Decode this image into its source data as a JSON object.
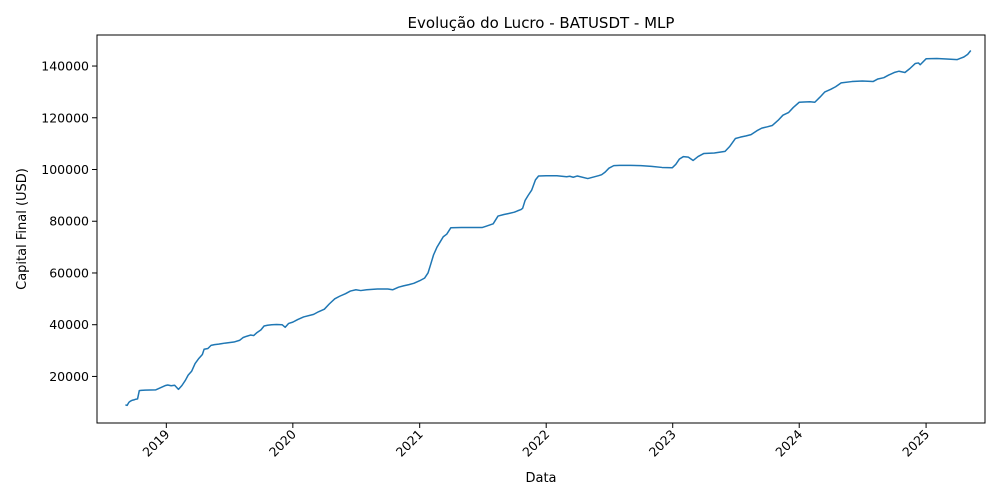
{
  "chart_data": {
    "type": "line",
    "title": "Evolução do Lucro - BATUSDT - MLP",
    "xlabel": "Data",
    "ylabel": "Capital Final (USD)",
    "x_range": [
      "2018-06-15",
      "2025-06-20"
    ],
    "ylim": [
      2000,
      152000
    ],
    "x_ticks": [
      "2019",
      "2020",
      "2021",
      "2022",
      "2023",
      "2024",
      "2025"
    ],
    "y_ticks": [
      "20000",
      "40000",
      "60000",
      "80000",
      "100000",
      "120000",
      "140000"
    ],
    "grid": false,
    "line_color": "#1f77b4",
    "series": [
      {
        "x": [
          "2018-09-05",
          "2018-09-10",
          "2018-09-15",
          "2018-09-20",
          "2018-09-25",
          "2018-10-01",
          "2018-10-05",
          "2018-10-10",
          "2018-10-15",
          "2018-10-20",
          "2018-11-01",
          "2018-12-01",
          "2018-12-30",
          "2019-01-05",
          "2019-01-15",
          "2019-01-25",
          "2019-02-05",
          "2019-02-15",
          "2019-02-25",
          "2019-03-05",
          "2019-03-15",
          "2019-03-25",
          "2019-04-05",
          "2019-04-15",
          "2019-04-20",
          "2019-05-01",
          "2019-05-10",
          "2019-05-20",
          "2019-06-01",
          "2019-06-10",
          "2019-06-20",
          "2019-07-15",
          "2019-08-01",
          "2019-08-10",
          "2019-08-20",
          "2019-09-01",
          "2019-09-10",
          "2019-09-20",
          "2019-10-01",
          "2019-10-10",
          "2019-10-20",
          "2019-11-01",
          "2019-11-15",
          "2019-12-01",
          "2019-12-10",
          "2019-12-20",
          "2020-01-01",
          "2020-01-15",
          "2020-02-01",
          "2020-03-01",
          "2020-03-15",
          "2020-04-01",
          "2020-04-15",
          "2020-05-01",
          "2020-05-15",
          "2020-06-01",
          "2020-06-15",
          "2020-07-01",
          "2020-07-15",
          "2020-08-01",
          "2020-09-01",
          "2020-10-01",
          "2020-10-15",
          "2020-11-01",
          "2020-11-15",
          "2020-12-01",
          "2020-12-15",
          "2021-01-01",
          "2021-01-15",
          "2021-01-25",
          "2021-02-01",
          "2021-02-10",
          "2021-02-20",
          "2021-03-01",
          "2021-03-10",
          "2021-03-20",
          "2021-04-01",
          "2021-05-01",
          "2021-06-01",
          "2021-07-01",
          "2021-07-10",
          "2021-08-01",
          "2021-08-15",
          "2021-09-01",
          "2021-09-15",
          "2021-10-01",
          "2021-10-10",
          "2021-10-20",
          "2021-10-25",
          "2021-11-01",
          "2021-11-10",
          "2021-11-20",
          "2021-12-01",
          "2021-12-10",
          "2022-01-01",
          "2022-02-01",
          "2022-03-01",
          "2022-03-10",
          "2022-03-20",
          "2022-04-01",
          "2022-05-01",
          "2022-06-01",
          "2022-06-10",
          "2022-06-20",
          "2022-07-01",
          "2022-07-15",
          "2022-08-01",
          "2022-09-01",
          "2022-10-01",
          "2022-11-01",
          "2022-12-01",
          "2022-12-31",
          "2023-01-10",
          "2023-01-20",
          "2023-02-01",
          "2023-02-15",
          "2023-03-01",
          "2023-03-15",
          "2023-04-01",
          "2023-05-01",
          "2023-06-01",
          "2023-06-15",
          "2023-07-01",
          "2023-07-15",
          "2023-08-01",
          "2023-08-15",
          "2023-09-01",
          "2023-09-15",
          "2023-10-01",
          "2023-10-15",
          "2023-11-01",
          "2023-11-15",
          "2023-12-01",
          "2023-12-15",
          "2024-01-01",
          "2024-01-15",
          "2024-02-01",
          "2024-02-15",
          "2024-03-01",
          "2024-03-15",
          "2024-04-01",
          "2024-04-15",
          "2024-05-01",
          "2024-06-01",
          "2024-07-01",
          "2024-08-01",
          "2024-08-15",
          "2024-09-01",
          "2024-09-15",
          "2024-10-01",
          "2024-10-15",
          "2024-11-01",
          "2024-11-15",
          "2024-12-01",
          "2024-12-10",
          "2024-12-15",
          "2025-01-01",
          "2025-02-01",
          "2025-03-01",
          "2025-04-01",
          "2025-04-10",
          "2025-04-20",
          "2025-05-01",
          "2025-05-10"
        ],
        "y": [
          9000,
          8800,
          10000,
          10500,
          10800,
          11000,
          11200,
          11300,
          14500,
          14600,
          14700,
          14800,
          16500,
          16700,
          16400,
          16600,
          15000,
          16500,
          18500,
          20500,
          22000,
          25000,
          27000,
          28500,
          30500,
          30800,
          32000,
          32300,
          32500,
          32700,
          32900,
          33300,
          34000,
          35000,
          35500,
          36000,
          35800,
          37000,
          38000,
          39500,
          39800,
          40000,
          40100,
          40000,
          39000,
          40500,
          41000,
          42000,
          43000,
          44000,
          45000,
          46000,
          48000,
          50000,
          51000,
          52000,
          53000,
          53500,
          53200,
          53500,
          53800,
          53800,
          53500,
          54500,
          55000,
          55500,
          56000,
          57000,
          58000,
          60000,
          63000,
          67000,
          70000,
          72000,
          74000,
          75000,
          77500,
          77600,
          77600,
          77600,
          78000,
          79000,
          82000,
          82600,
          83000,
          83500,
          84000,
          84500,
          85000,
          88000,
          90000,
          92000,
          96000,
          97500,
          97600,
          97600,
          97200,
          97400,
          97000,
          97500,
          96500,
          97600,
          98000,
          99000,
          100500,
          101500,
          101600,
          101600,
          101500,
          101200,
          100800,
          100700,
          102000,
          104000,
          105000,
          104800,
          103500,
          105000,
          106200,
          106400,
          107000,
          109000,
          112000,
          112500,
          113000,
          113500,
          115000,
          116000,
          116500,
          117000,
          119000,
          121000,
          122000,
          124000,
          126000,
          126100,
          126200,
          126000,
          128000,
          130000,
          131000,
          132000,
          133500,
          134000,
          134200,
          134000,
          135000,
          135500,
          136500,
          137500,
          138000,
          137500,
          139000,
          141000,
          141200,
          140500,
          142800,
          142900,
          142700,
          142500,
          143000,
          143500,
          144500,
          146000
        ]
      }
    ]
  }
}
